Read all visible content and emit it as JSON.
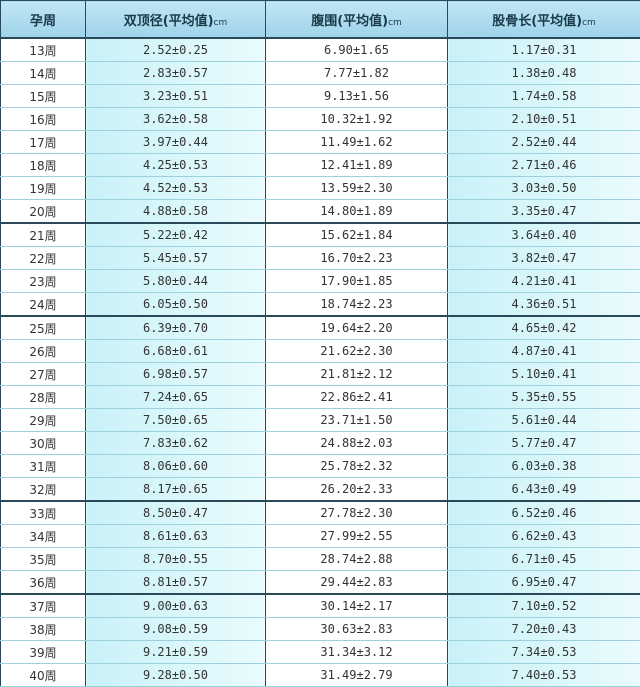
{
  "header": {
    "week": "孕周",
    "bpd": "双顶径(平均值)",
    "ac": "腹围(平均值)",
    "fl": "股骨长(平均值)",
    "unit": "cm"
  },
  "rows": [
    [
      "13周",
      "2.52±0.25",
      "6.90±1.65",
      "1.17±0.31"
    ],
    [
      "14周",
      "2.83±0.57",
      "7.77±1.82",
      "1.38±0.48"
    ],
    [
      "15周",
      "3.23±0.51",
      "9.13±1.56",
      "1.74±0.58"
    ],
    [
      "16周",
      "3.62±0.58",
      "10.32±1.92",
      "2.10±0.51"
    ],
    [
      "17周",
      "3.97±0.44",
      "11.49±1.62",
      "2.52±0.44"
    ],
    [
      "18周",
      "4.25±0.53",
      "12.41±1.89",
      "2.71±0.46"
    ],
    [
      "19周",
      "4.52±0.53",
      "13.59±2.30",
      "3.03±0.50"
    ],
    [
      "20周",
      "4.88±0.58",
      "14.80±1.89",
      "3.35±0.47"
    ],
    [
      "21周",
      "5.22±0.42",
      "15.62±1.84",
      "3.64±0.40"
    ],
    [
      "22周",
      "5.45±0.57",
      "16.70±2.23",
      "3.82±0.47"
    ],
    [
      "23周",
      "5.80±0.44",
      "17.90±1.85",
      "4.21±0.41"
    ],
    [
      "24周",
      "6.05±0.50",
      "18.74±2.23",
      "4.36±0.51"
    ],
    [
      "25周",
      "6.39±0.70",
      "19.64±2.20",
      "4.65±0.42"
    ],
    [
      "26周",
      "6.68±0.61",
      "21.62±2.30",
      "4.87±0.41"
    ],
    [
      "27周",
      "6.98±0.57",
      "21.81±2.12",
      "5.10±0.41"
    ],
    [
      "28周",
      "7.24±0.65",
      "22.86±2.41",
      "5.35±0.55"
    ],
    [
      "29周",
      "7.50±0.65",
      "23.71±1.50",
      "5.61±0.44"
    ],
    [
      "30周",
      "7.83±0.62",
      "24.88±2.03",
      "5.77±0.47"
    ],
    [
      "31周",
      "8.06±0.60",
      "25.78±2.32",
      "6.03±0.38"
    ],
    [
      "32周",
      "8.17±0.65",
      "26.20±2.33",
      "6.43±0.49"
    ],
    [
      "33周",
      "8.50±0.47",
      "27.78±2.30",
      "6.52±0.46"
    ],
    [
      "34周",
      "8.61±0.63",
      "27.99±2.55",
      "6.62±0.43"
    ],
    [
      "35周",
      "8.70±0.55",
      "28.74±2.88",
      "6.71±0.45"
    ],
    [
      "36周",
      "8.81±0.57",
      "29.44±2.83",
      "6.95±0.47"
    ],
    [
      "37周",
      "9.00±0.63",
      "30.14±2.17",
      "7.10±0.52"
    ],
    [
      "38周",
      "9.08±0.59",
      "30.63±2.83",
      "7.20±0.43"
    ],
    [
      "39周",
      "9.21±0.59",
      "31.34±3.12",
      "7.34±0.53"
    ],
    [
      "40周",
      "9.28±0.50",
      "31.49±2.79",
      "7.40±0.53"
    ]
  ]
}
